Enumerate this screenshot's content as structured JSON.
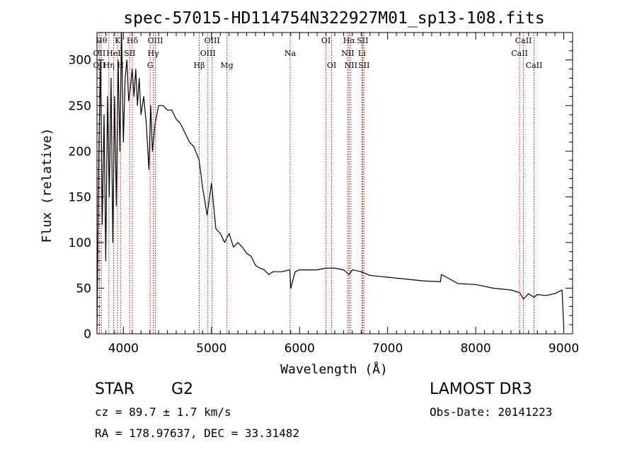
{
  "chart_data": {
    "type": "line",
    "title": "spec-57015-HD114754N322927M01_sp13-108.fits",
    "xlabel": "Wavelength (Å)",
    "ylabel": "Flux (relative)",
    "xlim": [
      3700,
      9100
    ],
    "ylim": [
      0,
      330
    ],
    "xticks": [
      4000,
      5000,
      6000,
      7000,
      8000,
      9000
    ],
    "yticks": [
      0,
      50,
      100,
      150,
      200,
      250,
      300
    ],
    "grid": false,
    "series": [
      {
        "name": "flux",
        "x": [
          3700,
          3720,
          3740,
          3760,
          3780,
          3800,
          3820,
          3840,
          3860,
          3880,
          3900,
          3920,
          3940,
          3960,
          3980,
          4000,
          4020,
          4040,
          4060,
          4080,
          4100,
          4120,
          4140,
          4160,
          4180,
          4200,
          4230,
          4260,
          4290,
          4310,
          4330,
          4360,
          4400,
          4450,
          4500,
          4550,
          4600,
          4650,
          4700,
          4750,
          4800,
          4860,
          4900,
          4950,
          5000,
          5050,
          5100,
          5150,
          5200,
          5250,
          5300,
          5350,
          5400,
          5450,
          5500,
          5550,
          5600,
          5650,
          5700,
          5800,
          5890,
          5900,
          5950,
          6000,
          6100,
          6200,
          6300,
          6400,
          6500,
          6560,
          6600,
          6700,
          6800,
          6900,
          7000,
          7200,
          7400,
          7600,
          7610,
          7800,
          8000,
          8200,
          8400,
          8500,
          8542,
          8600,
          8662,
          8700,
          8800,
          8900,
          8980,
          9000
        ],
        "values": [
          5,
          190,
          300,
          120,
          240,
          80,
          260,
          150,
          280,
          100,
          260,
          140,
          300,
          200,
          330,
          210,
          280,
          300,
          255,
          270,
          290,
          260,
          290,
          250,
          280,
          240,
          260,
          230,
          180,
          250,
          200,
          230,
          250,
          250,
          245,
          245,
          235,
          230,
          220,
          210,
          205,
          190,
          160,
          130,
          165,
          115,
          110,
          100,
          110,
          95,
          100,
          95,
          88,
          85,
          75,
          72,
          70,
          65,
          68,
          68,
          70,
          50,
          68,
          70,
          70,
          70,
          72,
          72,
          70,
          65,
          70,
          68,
          64,
          63,
          62,
          60,
          58,
          57,
          65,
          55,
          54,
          50,
          48,
          45,
          38,
          44,
          40,
          43,
          42,
          44,
          48,
          5
        ]
      }
    ],
    "lines": [
      {
        "label": "Hθ",
        "x": 3750,
        "row": 0
      },
      {
        "label": "OII",
        "x": 3727,
        "row": 1
      },
      {
        "label": "OII",
        "x": 3727,
        "row": 2
      },
      {
        "label": "Hη",
        "x": 3835,
        "row": 2
      },
      {
        "label": "HeI",
        "x": 3889,
        "row": 1
      },
      {
        "label": "K",
        "x": 3934,
        "row": 0
      },
      {
        "label": "H",
        "x": 3968,
        "row": 2
      },
      {
        "label": "SII",
        "x": 4072,
        "row": 1
      },
      {
        "label": "Hδ",
        "x": 4102,
        "row": 0
      },
      {
        "label": "OIII",
        "x": 4363,
        "row": 0
      },
      {
        "label": "Hγ",
        "x": 4340,
        "row": 1
      },
      {
        "label": "G",
        "x": 4304,
        "row": 2
      },
      {
        "label": "Hβ",
        "x": 4861,
        "row": 2
      },
      {
        "label": "OIII",
        "x": 5007,
        "row": 0
      },
      {
        "label": "OIII",
        "x": 4959,
        "row": 1
      },
      {
        "label": "Mg",
        "x": 5175,
        "row": 2
      },
      {
        "label": "Na",
        "x": 5893,
        "row": 1
      },
      {
        "label": "OI",
        "x": 6300,
        "row": 0
      },
      {
        "label": "OI",
        "x": 6364,
        "row": 2
      },
      {
        "label": "Hα",
        "x": 6563,
        "row": 0
      },
      {
        "label": "SII",
        "x": 6716,
        "row": 0
      },
      {
        "label": "NII",
        "x": 6548,
        "row": 1
      },
      {
        "label": "Li",
        "x": 6708,
        "row": 1
      },
      {
        "label": "NII",
        "x": 6583,
        "row": 2
      },
      {
        "label": "SII",
        "x": 6731,
        "row": 2
      },
      {
        "label": "CaII",
        "x": 8542,
        "row": 0
      },
      {
        "label": "CaII",
        "x": 8498,
        "row": 1
      },
      {
        "label": "CaII",
        "x": 8662,
        "row": 2
      }
    ],
    "line_color": "#cc0000"
  },
  "info": {
    "class_label": "STAR",
    "subclass": "G2",
    "survey": "LAMOST DR3",
    "redshift": "cz =  89.7 ± 1.7 km/s",
    "obs_date": "Obs-Date: 20141223",
    "coords": "RA = 178.97637, DEC =  33.31482"
  }
}
